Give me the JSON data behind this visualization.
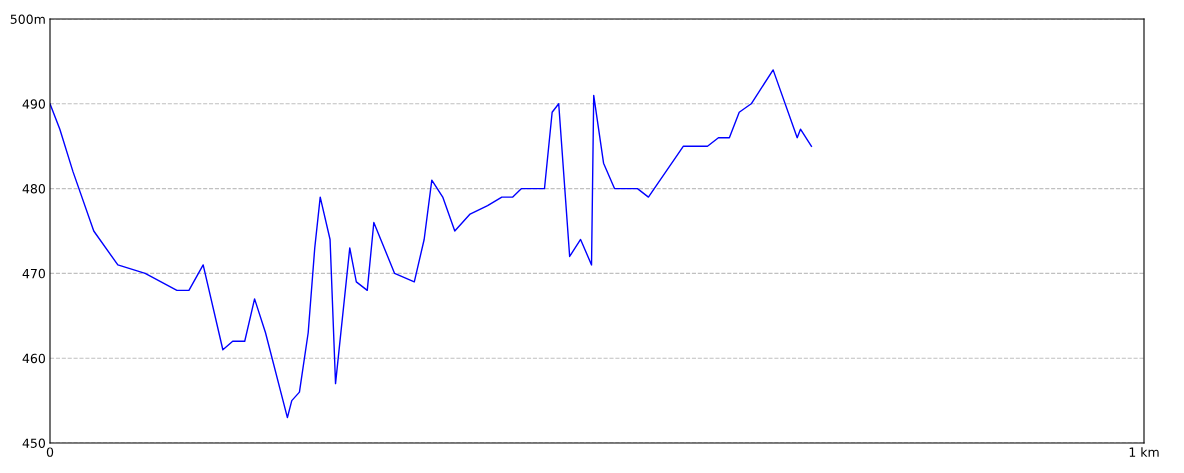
{
  "chart_data": {
    "type": "line",
    "x": [
      0,
      0.009,
      0.021,
      0.04,
      0.062,
      0.087,
      0.116,
      0.127,
      0.14,
      0.158,
      0.167,
      0.178,
      0.187,
      0.197,
      0.217,
      0.221,
      0.228,
      0.236,
      0.242,
      0.247,
      0.256,
      0.261,
      0.274,
      0.28,
      0.29,
      0.296,
      0.315,
      0.333,
      0.342,
      0.349,
      0.359,
      0.37,
      0.384,
      0.4,
      0.413,
      0.423,
      0.431,
      0.439,
      0.452,
      0.459,
      0.465,
      0.475,
      0.485,
      0.495,
      0.497,
      0.506,
      0.516,
      0.537,
      0.547,
      0.579,
      0.601,
      0.611,
      0.621,
      0.63,
      0.641,
      0.661,
      0.683,
      0.686,
      0.696
    ],
    "series": [
      {
        "color": "#0000ff",
        "values": [
          490,
          487,
          482,
          475,
          471,
          470,
          468,
          468,
          471,
          461,
          462,
          462,
          467,
          463,
          453,
          455,
          456,
          463,
          473,
          479,
          474,
          457,
          473,
          469,
          468,
          476,
          470,
          469,
          474,
          481,
          479,
          475,
          477,
          478,
          479,
          479,
          480,
          480,
          480,
          489,
          490,
          472,
          474,
          471,
          491,
          483,
          480,
          480,
          479,
          485,
          485,
          486,
          486,
          489,
          490,
          494,
          486,
          487,
          485
        ]
      }
    ],
    "xlim": [
      0,
      1
    ],
    "xticks": [
      0,
      {
        "value": 1,
        "label": "1 km"
      }
    ],
    "ylim": [
      450,
      500
    ],
    "yticks": [
      450,
      460,
      470,
      480,
      490,
      {
        "value": 500,
        "label": "500m"
      }
    ],
    "grid": "y",
    "line_style": "solid",
    "marker": "none"
  }
}
